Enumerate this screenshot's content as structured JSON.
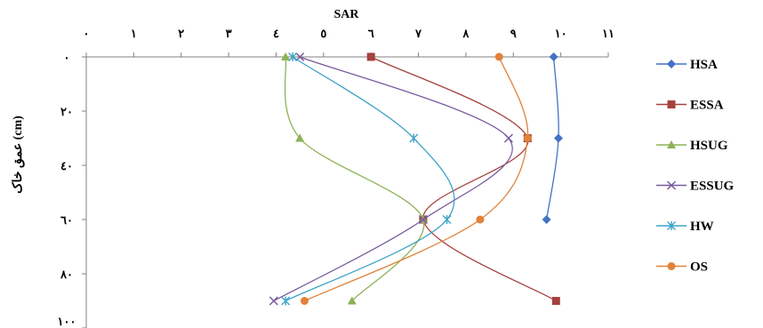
{
  "chart_data": {
    "type": "line",
    "title": "",
    "xlabel": "SAR",
    "ylabel": "عمق خاک (cm)",
    "x_axis_position": "top",
    "y_axis_inverted": true,
    "xlim": [
      0,
      11
    ],
    "ylim": [
      0,
      100
    ],
    "x_ticks": [
      0,
      1,
      2,
      3,
      4,
      5,
      6,
      7,
      8,
      9,
      10,
      11
    ],
    "x_tick_labels": [
      "٠",
      "١",
      "٢",
      "٣",
      "٤",
      "٥",
      "٦",
      "٧",
      "٨",
      "٩",
      "١٠",
      "١١"
    ],
    "y_ticks": [
      0,
      20,
      40,
      60,
      80,
      100
    ],
    "y_tick_labels": [
      "٠",
      "٢٠",
      "٤٠",
      "٦٠",
      "٨٠",
      "١٠٠"
    ],
    "grid": false,
    "legend_position": "right",
    "smooth_lines": true,
    "series": [
      {
        "name": "HSA",
        "color": "#4472C4",
        "marker": "diamond",
        "points": [
          [
            9.85,
            0
          ],
          [
            9.95,
            30
          ],
          [
            9.7,
            60
          ]
        ]
      },
      {
        "name": "ESSA",
        "color": "#A5413E",
        "marker": "square",
        "points": [
          [
            6.0,
            0
          ],
          [
            9.3,
            30
          ],
          [
            7.1,
            60
          ],
          [
            9.9,
            90
          ]
        ]
      },
      {
        "name": "HSUG",
        "color": "#8DB255",
        "marker": "triangle",
        "points": [
          [
            4.2,
            0
          ],
          [
            4.5,
            30
          ],
          [
            7.1,
            60
          ],
          [
            5.6,
            90
          ]
        ]
      },
      {
        "name": "ESSUG",
        "color": "#7A5A9E",
        "marker": "x",
        "points": [
          [
            4.5,
            0
          ],
          [
            8.9,
            30
          ],
          [
            7.1,
            60
          ],
          [
            3.95,
            90
          ]
        ]
      },
      {
        "name": "HW",
        "color": "#3FA3C8",
        "marker": "asterisk",
        "points": [
          [
            4.35,
            0
          ],
          [
            6.9,
            30
          ],
          [
            7.6,
            60
          ],
          [
            4.2,
            90
          ]
        ]
      },
      {
        "name": "OS",
        "color": "#E0823A",
        "marker": "circle",
        "points": [
          [
            8.7,
            0
          ],
          [
            9.3,
            30
          ],
          [
            8.3,
            60
          ],
          [
            4.6,
            90
          ]
        ]
      }
    ]
  }
}
